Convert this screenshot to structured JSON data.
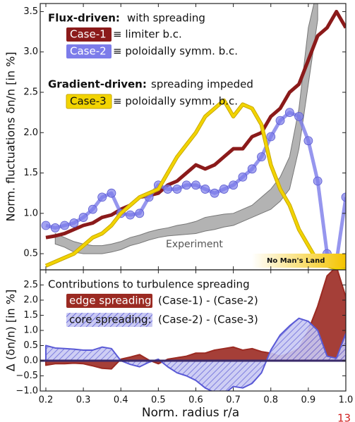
{
  "chart_data": [
    {
      "type": "line",
      "ylabel": "Norm. fluctuations δn/n  [in %]",
      "headings": [
        {
          "bold": "Flux-driven:",
          "text": "with spreading"
        },
        {
          "bold": "Gradient-driven:",
          "text": "spreading impeded"
        }
      ],
      "xlim": [
        0.185,
        1.0
      ],
      "ylim": [
        0.3,
        3.6
      ],
      "yticks": [
        0.5,
        {
          "value": 1.0,
          "label": "1.0"
        },
        1.5,
        {
          "value": 2.0,
          "label": "2.0"
        },
        2.5,
        {
          "value": 3.0,
          "label": "3.0"
        },
        3.5
      ],
      "x": [
        0.2,
        0.225,
        0.25,
        0.275,
        0.3,
        0.325,
        0.35,
        0.375,
        0.4,
        0.425,
        0.45,
        0.475,
        0.5,
        0.525,
        0.55,
        0.575,
        0.6,
        0.625,
        0.65,
        0.675,
        0.7,
        0.725,
        0.75,
        0.775,
        0.8,
        0.825,
        0.85,
        0.875,
        0.9,
        0.925,
        0.95,
        0.975,
        1.0
      ],
      "series": [
        {
          "name": "Case-1",
          "description": "≡ limiter b.c.",
          "color": "#8b1a1a",
          "values": [
            0.7,
            0.72,
            0.75,
            0.8,
            0.85,
            0.88,
            0.95,
            0.98,
            1.05,
            1.1,
            1.2,
            1.22,
            1.25,
            1.35,
            1.4,
            1.5,
            1.6,
            1.55,
            1.6,
            1.7,
            1.8,
            1.8,
            1.95,
            2.0,
            2.2,
            2.3,
            2.5,
            2.6,
            2.9,
            3.2,
            3.3,
            3.5,
            3.3
          ]
        },
        {
          "name": "Case-2",
          "description": "≡ poloidally symm. b.c.",
          "color": "#7c7cea",
          "markers": true,
          "values": [
            0.85,
            0.82,
            0.85,
            0.88,
            0.95,
            1.05,
            1.2,
            1.25,
            1.0,
            0.98,
            1.0,
            1.2,
            1.35,
            1.3,
            1.3,
            1.35,
            1.35,
            1.3,
            1.25,
            1.3,
            1.35,
            1.45,
            1.55,
            1.7,
            1.95,
            2.15,
            2.25,
            2.2,
            1.9,
            1.4,
            0.5,
            0.4,
            1.2
          ]
        },
        {
          "name": "Case-3",
          "description": "≡ poloidally symm. b.c.",
          "color": "#f2d400",
          "values": [
            0.35,
            0.4,
            0.45,
            0.5,
            0.6,
            0.7,
            0.75,
            0.85,
            1.0,
            1.1,
            1.2,
            1.25,
            1.3,
            1.5,
            1.7,
            1.85,
            2.0,
            2.2,
            2.3,
            2.4,
            2.2,
            2.35,
            2.3,
            2.1,
            1.6,
            1.3,
            1.1,
            0.8,
            0.6,
            0.4,
            0.35,
            0.32,
            0.3
          ]
        }
      ],
      "band": {
        "name": "Experiment",
        "color": "#9a9a9a",
        "lower": [
          null,
          0.62,
          0.58,
          0.52,
          0.5,
          0.5,
          0.5,
          0.52,
          0.55,
          0.6,
          0.63,
          0.67,
          0.7,
          0.72,
          0.73,
          0.74,
          0.75,
          0.78,
          0.8,
          0.83,
          0.85,
          0.9,
          0.95,
          1.0,
          1.05,
          1.15,
          1.3,
          1.8,
          2.6,
          3.4,
          null,
          null,
          null
        ],
        "upper": [
          null,
          0.75,
          0.7,
          0.65,
          0.62,
          0.6,
          0.6,
          0.62,
          0.65,
          0.7,
          0.73,
          0.77,
          0.8,
          0.82,
          0.85,
          0.87,
          0.9,
          0.95,
          0.97,
          0.99,
          1.0,
          1.05,
          1.1,
          1.2,
          1.3,
          1.45,
          1.7,
          2.3,
          3.3,
          3.8,
          null,
          null,
          null
        ]
      },
      "region_label": "No Man's Land"
    },
    {
      "type": "area",
      "ylabel": "Δ (δn/n)  [in %]",
      "heading": "Contributions to turbulence spreading",
      "xlabel": "Norm. radius r/a",
      "xlim": [
        0.185,
        1.0
      ],
      "ylim": [
        -1.0,
        3.0
      ],
      "xticks": [
        0.2,
        0.3,
        0.4,
        0.5,
        0.6,
        0.7,
        0.8,
        0.9,
        {
          "value": 1.0,
          "label": "1.0"
        }
      ],
      "yticks": [
        {
          "value": -1.0,
          "label": "−1.0"
        },
        {
          "value": -0.5,
          "label": "−0.5"
        },
        {
          "value": 0.0,
          "label": "0.0"
        },
        0.5,
        {
          "value": 1.0,
          "label": "1.0"
        },
        1.5,
        {
          "value": 2.0,
          "label": "2.0"
        },
        2.5
      ],
      "x": [
        0.2,
        0.225,
        0.25,
        0.275,
        0.3,
        0.325,
        0.35,
        0.375,
        0.4,
        0.425,
        0.45,
        0.475,
        0.5,
        0.525,
        0.55,
        0.575,
        0.6,
        0.625,
        0.65,
        0.675,
        0.7,
        0.725,
        0.75,
        0.775,
        0.8,
        0.825,
        0.85,
        0.875,
        0.9,
        0.925,
        0.95,
        0.975,
        1.0
      ],
      "series": [
        {
          "name": "edge spreading:",
          "description": "(Case-1) - (Case-2)",
          "color": "#9b2a22",
          "fill": "solid",
          "values": [
            -0.15,
            -0.1,
            -0.1,
            -0.08,
            -0.1,
            -0.17,
            -0.25,
            -0.27,
            0.05,
            0.12,
            0.2,
            0.02,
            -0.1,
            0.05,
            0.1,
            0.15,
            0.25,
            0.25,
            0.35,
            0.4,
            0.45,
            0.35,
            0.4,
            0.3,
            0.25,
            0.15,
            0.25,
            0.4,
            1.0,
            1.8,
            2.8,
            3.1,
            2.1
          ]
        },
        {
          "name": "core spreading:",
          "description": "(Case-2) - (Case-3)",
          "color": "#5a5ad6",
          "fill": "hatch",
          "values": [
            0.5,
            0.42,
            0.4,
            0.38,
            0.35,
            0.35,
            0.45,
            0.4,
            0.0,
            -0.12,
            -0.2,
            -0.05,
            0.05,
            -0.2,
            -0.4,
            -0.5,
            -0.65,
            -0.9,
            -1.05,
            -1.1,
            -0.85,
            -0.9,
            -0.75,
            -0.4,
            0.35,
            0.85,
            1.15,
            1.4,
            1.3,
            1.0,
            0.15,
            0.08,
            0.9
          ]
        }
      ]
    }
  ],
  "page_number": "13"
}
